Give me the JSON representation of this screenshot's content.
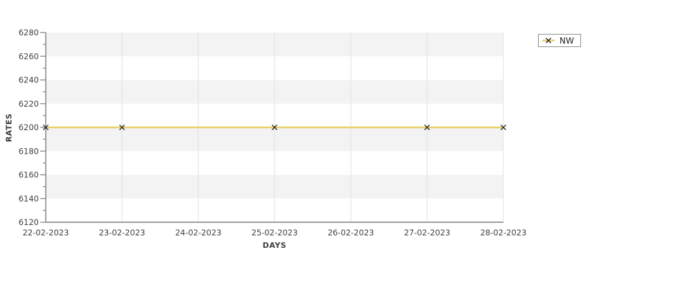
{
  "chart_data": {
    "type": "line",
    "title": "",
    "xlabel": "DAYS",
    "ylabel": "RATES",
    "x_ticks": [
      "22-02-2023",
      "23-02-2023",
      "24-02-2023",
      "25-02-2023",
      "26-02-2023",
      "27-02-2023",
      "28-02-2023"
    ],
    "y_ticks": [
      6120,
      6140,
      6160,
      6180,
      6200,
      6220,
      6240,
      6260,
      6280
    ],
    "ylim": [
      6120,
      6280
    ],
    "y_minor_step": 10,
    "grid": "vertical-lines-and-horizontal-bands",
    "legend_position": "outside-top-right",
    "series": [
      {
        "name": "NW",
        "marker": "x",
        "line_value": 6200,
        "points": [
          {
            "x": "22-02-2023",
            "y": 6200
          },
          {
            "x": "23-02-2023",
            "y": 6200
          },
          {
            "x": "25-02-2023",
            "y": 6200
          },
          {
            "x": "27-02-2023",
            "y": 6200
          },
          {
            "x": "28-02-2023",
            "y": 6200
          }
        ]
      }
    ]
  },
  "colors": {
    "series_line": "#e9ce6b",
    "marker": "#1c1c1c",
    "band_fill": "#f3f3f3",
    "grid_line": "#e2e2e2",
    "axis_line": "#7d7d7d",
    "tick_text": "#404040",
    "legend_border": "#8f8f8f"
  }
}
